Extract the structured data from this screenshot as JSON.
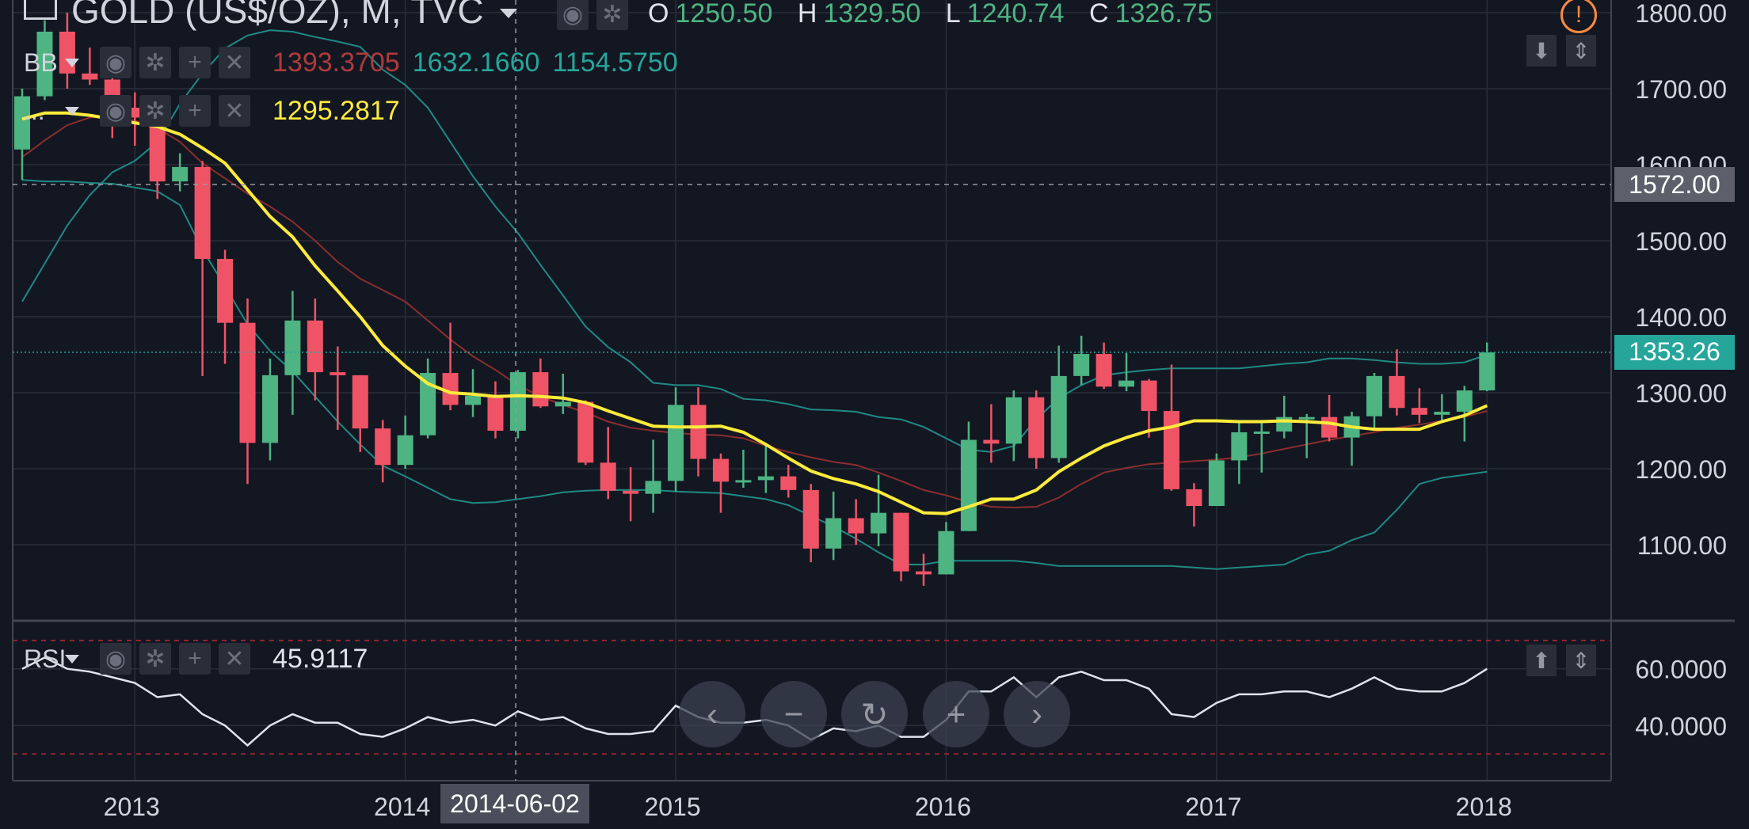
{
  "header": {
    "symbol_title": "GOLD (US$/OZ), M, TVC",
    "ohlc": [
      {
        "key": "O",
        "value": "1250.50"
      },
      {
        "key": "H",
        "value": "1329.50"
      },
      {
        "key": "L",
        "value": "1240.74"
      },
      {
        "key": "C",
        "value": "1326.75"
      }
    ]
  },
  "indicators": {
    "bb": {
      "name": "BB",
      "values": [
        "1393.3705",
        "1632.1660",
        "1154.5750"
      ],
      "colors": [
        "#b03a3a",
        "#26a69a",
        "#26a69a"
      ]
    },
    "ma": {
      "name": "...",
      "value": "1295.2817",
      "color": "#ffeb3b"
    },
    "rsi": {
      "name": "RSI",
      "value": "45.9117"
    }
  },
  "price_tags": {
    "crosshair": "1572.00",
    "last": "1353.26"
  },
  "crosshair_date": "2014-06-02",
  "colors": {
    "up": "#4db482",
    "down": "#ef5466",
    "ma": "#ffeb3b",
    "bb_mid": "#8b2e2e",
    "bb_band": "#1f8a84",
    "rsi": "#e0e3eb",
    "grid": "#2a2e39",
    "bg": "#131722"
  },
  "icons": [
    "menu-icon",
    "chevron-down-icon",
    "eye-icon",
    "gear-icon",
    "plus-icon",
    "close-icon",
    "alert-icon",
    "arrow-down-icon",
    "arrows-updown-icon",
    "arrow-up-icon",
    "chevron-left-icon",
    "minus-icon",
    "reset-icon",
    "chevron-right-icon"
  ],
  "chart_data": [
    {
      "type": "candlestick",
      "title": "GOLD (US$/OZ), M, TVC",
      "x_ticks": [
        "2013",
        "2014",
        "2015",
        "2016",
        "2017",
        "2018"
      ],
      "y_ticks": [
        "1100.00",
        "1200.00",
        "1300.00",
        "1400.00",
        "1500.00",
        "1600.00",
        "1700.00",
        "1800.00"
      ],
      "ylim": [
        1000,
        1810
      ],
      "candles": [
        {
          "x": "2012-08",
          "o": 1620,
          "h": 1700,
          "l": 1580,
          "c": 1690
        },
        {
          "x": "2012-09",
          "o": 1690,
          "h": 1790,
          "l": 1685,
          "c": 1775
        },
        {
          "x": "2012-10",
          "o": 1775,
          "h": 1800,
          "l": 1700,
          "c": 1720
        },
        {
          "x": "2012-11",
          "o": 1720,
          "h": 1754,
          "l": 1705,
          "c": 1712
        },
        {
          "x": "2012-12",
          "o": 1712,
          "h": 1725,
          "l": 1635,
          "c": 1675
        },
        {
          "x": "2013-01",
          "o": 1675,
          "h": 1695,
          "l": 1625,
          "c": 1662
        },
        {
          "x": "2013-02",
          "o": 1662,
          "h": 1675,
          "l": 1555,
          "c": 1578
        },
        {
          "x": "2013-03",
          "o": 1578,
          "h": 1615,
          "l": 1565,
          "c": 1597
        },
        {
          "x": "2013-04",
          "o": 1597,
          "h": 1605,
          "l": 1322,
          "c": 1476
        },
        {
          "x": "2013-05",
          "o": 1476,
          "h": 1488,
          "l": 1338,
          "c": 1392
        },
        {
          "x": "2013-06",
          "o": 1392,
          "h": 1424,
          "l": 1180,
          "c": 1234
        },
        {
          "x": "2013-07",
          "o": 1234,
          "h": 1345,
          "l": 1211,
          "c": 1323
        },
        {
          "x": "2013-08",
          "o": 1323,
          "h": 1434,
          "l": 1271,
          "c": 1395
        },
        {
          "x": "2013-09",
          "o": 1395,
          "h": 1424,
          "l": 1290,
          "c": 1327
        },
        {
          "x": "2013-10",
          "o": 1327,
          "h": 1361,
          "l": 1251,
          "c": 1323
        },
        {
          "x": "2013-11",
          "o": 1323,
          "h": 1323,
          "l": 1222,
          "c": 1253
        },
        {
          "x": "2013-12",
          "o": 1253,
          "h": 1264,
          "l": 1182,
          "c": 1205
        },
        {
          "x": "2014-01",
          "o": 1205,
          "h": 1270,
          "l": 1200,
          "c": 1244
        },
        {
          "x": "2014-02",
          "o": 1244,
          "h": 1345,
          "l": 1240,
          "c": 1326
        },
        {
          "x": "2014-03",
          "o": 1326,
          "h": 1392,
          "l": 1277,
          "c": 1284
        },
        {
          "x": "2014-04",
          "o": 1284,
          "h": 1331,
          "l": 1268,
          "c": 1296
        },
        {
          "x": "2014-05",
          "o": 1296,
          "h": 1315,
          "l": 1240,
          "c": 1250
        },
        {
          "x": "2014-06",
          "o": 1250,
          "h": 1330,
          "l": 1240,
          "c": 1327
        },
        {
          "x": "2014-07",
          "o": 1327,
          "h": 1345,
          "l": 1280,
          "c": 1282
        },
        {
          "x": "2014-08",
          "o": 1282,
          "h": 1325,
          "l": 1272,
          "c": 1288
        },
        {
          "x": "2014-09",
          "o": 1288,
          "h": 1290,
          "l": 1205,
          "c": 1208
        },
        {
          "x": "2014-10",
          "o": 1208,
          "h": 1255,
          "l": 1160,
          "c": 1171
        },
        {
          "x": "2014-11",
          "o": 1171,
          "h": 1202,
          "l": 1131,
          "c": 1167
        },
        {
          "x": "2014-12",
          "o": 1167,
          "h": 1238,
          "l": 1142,
          "c": 1184
        },
        {
          "x": "2015-01",
          "o": 1184,
          "h": 1307,
          "l": 1170,
          "c": 1284
        },
        {
          "x": "2015-02",
          "o": 1284,
          "h": 1307,
          "l": 1190,
          "c": 1213
        },
        {
          "x": "2015-03",
          "o": 1213,
          "h": 1220,
          "l": 1142,
          "c": 1183
        },
        {
          "x": "2015-04",
          "o": 1183,
          "h": 1225,
          "l": 1175,
          "c": 1185
        },
        {
          "x": "2015-05",
          "o": 1185,
          "h": 1232,
          "l": 1168,
          "c": 1190
        },
        {
          "x": "2015-06",
          "o": 1190,
          "h": 1205,
          "l": 1162,
          "c": 1172
        },
        {
          "x": "2015-07",
          "o": 1172,
          "h": 1180,
          "l": 1077,
          "c": 1095
        },
        {
          "x": "2015-08",
          "o": 1095,
          "h": 1170,
          "l": 1080,
          "c": 1135
        },
        {
          "x": "2015-09",
          "o": 1135,
          "h": 1160,
          "l": 1100,
          "c": 1115
        },
        {
          "x": "2015-10",
          "o": 1115,
          "h": 1192,
          "l": 1098,
          "c": 1142
        },
        {
          "x": "2015-11",
          "o": 1142,
          "h": 1142,
          "l": 1052,
          "c": 1065
        },
        {
          "x": "2015-12",
          "o": 1065,
          "h": 1088,
          "l": 1046,
          "c": 1061
        },
        {
          "x": "2016-01",
          "o": 1061,
          "h": 1130,
          "l": 1061,
          "c": 1118
        },
        {
          "x": "2016-02",
          "o": 1118,
          "h": 1262,
          "l": 1118,
          "c": 1238
        },
        {
          "x": "2016-03",
          "o": 1238,
          "h": 1285,
          "l": 1208,
          "c": 1233
        },
        {
          "x": "2016-04",
          "o": 1233,
          "h": 1303,
          "l": 1210,
          "c": 1294
        },
        {
          "x": "2016-05",
          "o": 1294,
          "h": 1303,
          "l": 1200,
          "c": 1214
        },
        {
          "x": "2016-06",
          "o": 1214,
          "h": 1362,
          "l": 1208,
          "c": 1322
        },
        {
          "x": "2016-07",
          "o": 1322,
          "h": 1375,
          "l": 1310,
          "c": 1351
        },
        {
          "x": "2016-08",
          "o": 1351,
          "h": 1366,
          "l": 1305,
          "c": 1308
        },
        {
          "x": "2016-09",
          "o": 1308,
          "h": 1352,
          "l": 1302,
          "c": 1316
        },
        {
          "x": "2016-10",
          "o": 1316,
          "h": 1318,
          "l": 1241,
          "c": 1276
        },
        {
          "x": "2016-11",
          "o": 1276,
          "h": 1337,
          "l": 1171,
          "c": 1173
        },
        {
          "x": "2016-12",
          "o": 1173,
          "h": 1181,
          "l": 1124,
          "c": 1151
        },
        {
          "x": "2017-01",
          "o": 1151,
          "h": 1220,
          "l": 1151,
          "c": 1211
        },
        {
          "x": "2017-02",
          "o": 1211,
          "h": 1264,
          "l": 1180,
          "c": 1248
        },
        {
          "x": "2017-03",
          "o": 1248,
          "h": 1262,
          "l": 1195,
          "c": 1249
        },
        {
          "x": "2017-04",
          "o": 1249,
          "h": 1296,
          "l": 1240,
          "c": 1268
        },
        {
          "x": "2017-05",
          "o": 1268,
          "h": 1272,
          "l": 1214,
          "c": 1268
        },
        {
          "x": "2017-06",
          "o": 1268,
          "h": 1297,
          "l": 1236,
          "c": 1241
        },
        {
          "x": "2017-07",
          "o": 1241,
          "h": 1275,
          "l": 1204,
          "c": 1269
        },
        {
          "x": "2017-08",
          "o": 1269,
          "h": 1326,
          "l": 1250,
          "c": 1322
        },
        {
          "x": "2017-09",
          "o": 1322,
          "h": 1357,
          "l": 1270,
          "c": 1280
        },
        {
          "x": "2017-10",
          "o": 1280,
          "h": 1306,
          "l": 1260,
          "c": 1271
        },
        {
          "x": "2017-11",
          "o": 1271,
          "h": 1298,
          "l": 1264,
          "c": 1275
        },
        {
          "x": "2017-12",
          "o": 1275,
          "h": 1309,
          "l": 1236,
          "c": 1303
        },
        {
          "x": "2018-01",
          "o": 1303,
          "h": 1366,
          "l": 1302,
          "c": 1353
        }
      ],
      "ma": [
        1660,
        1668,
        1668,
        1665,
        1660,
        1655,
        1650,
        1640,
        1622,
        1602,
        1567,
        1532,
        1505,
        1467,
        1434,
        1400,
        1362,
        1335,
        1312,
        1300,
        1298,
        1295,
        1296,
        1295,
        1293,
        1287,
        1276,
        1266,
        1256,
        1255,
        1255,
        1256,
        1248,
        1232,
        1214,
        1197,
        1187,
        1180,
        1170,
        1156,
        1142,
        1141,
        1150,
        1160,
        1160,
        1172,
        1196,
        1214,
        1230,
        1241,
        1250,
        1255,
        1263,
        1263,
        1262,
        1262,
        1263,
        1262,
        1260,
        1255,
        1252,
        1252,
        1252,
        1262,
        1270,
        1283
      ],
      "bb_mid": [
        1610,
        1632,
        1652,
        1662,
        1665,
        1658,
        1648,
        1630,
        1602,
        1582,
        1562,
        1545,
        1525,
        1500,
        1472,
        1450,
        1435,
        1420,
        1395,
        1370,
        1348,
        1330,
        1310,
        1295,
        1284,
        1274,
        1262,
        1254,
        1250,
        1247,
        1245,
        1244,
        1240,
        1230,
        1222,
        1215,
        1209,
        1205,
        1195,
        1184,
        1172,
        1165,
        1156,
        1150,
        1149,
        1150,
        1162,
        1180,
        1195,
        1201,
        1206,
        1208,
        1210,
        1212,
        1215,
        1220,
        1226,
        1232,
        1238,
        1243,
        1248,
        1254,
        1258,
        1263,
        1268,
        1276
      ],
      "bb_upper": [
        1420,
        1470,
        1520,
        1560,
        1590,
        1605,
        1630,
        1680,
        1720,
        1753,
        1770,
        1777,
        1775,
        1768,
        1762,
        1755,
        1725,
        1705,
        1675,
        1630,
        1585,
        1545,
        1510,
        1468,
        1428,
        1387,
        1360,
        1340,
        1313,
        1310,
        1310,
        1305,
        1292,
        1290,
        1285,
        1278,
        1277,
        1275,
        1268,
        1265,
        1255,
        1240,
        1225,
        1222,
        1230,
        1265,
        1293,
        1310,
        1323,
        1327,
        1330,
        1332,
        1332,
        1332,
        1332,
        1335,
        1338,
        1340,
        1345,
        1345,
        1343,
        1340,
        1338,
        1338,
        1340,
        1350
      ],
      "bb_lower": [
        1580,
        1578,
        1578,
        1576,
        1575,
        1570,
        1565,
        1547,
        1488,
        1440,
        1390,
        1355,
        1328,
        1295,
        1262,
        1232,
        1204,
        1190,
        1175,
        1160,
        1155,
        1156,
        1160,
        1164,
        1169,
        1171,
        1172,
        1172,
        1172,
        1170,
        1169,
        1168,
        1164,
        1160,
        1152,
        1138,
        1124,
        1108,
        1090,
        1074,
        1074,
        1079,
        1079,
        1079,
        1079,
        1076,
        1072,
        1072,
        1072,
        1072,
        1072,
        1072,
        1070,
        1068,
        1070,
        1072,
        1074,
        1087,
        1092,
        1106,
        1116,
        1146,
        1180,
        1188,
        1192,
        1196
      ],
      "ohlc_last": {
        "o": 1250.5,
        "h": 1329.5,
        "l": 1240.74,
        "c": 1326.75
      }
    },
    {
      "type": "line",
      "name": "RSI",
      "y_ticks": [
        "40.0000",
        "60.0000"
      ],
      "ylim": [
        25,
        72
      ],
      "upper_band": 70,
      "lower_band": 30,
      "values": [
        60,
        64,
        60,
        59,
        57,
        55,
        50,
        51,
        44,
        40,
        33,
        40,
        44,
        41,
        41,
        37,
        36,
        39,
        43,
        41,
        42,
        40,
        45,
        42,
        43,
        39,
        37,
        37,
        38,
        47,
        43,
        41,
        41,
        42,
        40,
        35,
        39,
        38,
        40,
        36,
        36,
        42,
        52,
        52,
        57,
        50,
        57,
        59,
        56,
        56,
        53,
        44,
        43,
        48,
        51,
        51,
        52,
        52,
        50,
        53,
        57,
        53,
        52,
        52,
        55,
        60
      ]
    }
  ]
}
